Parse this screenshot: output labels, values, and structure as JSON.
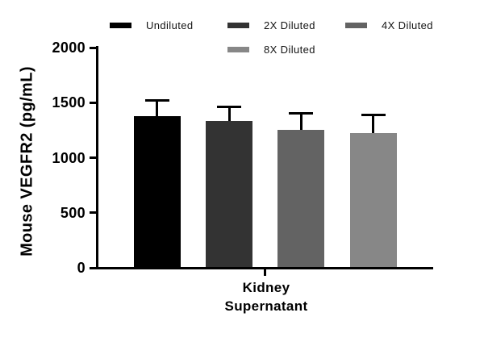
{
  "background": "#ffffff",
  "chart_data": {
    "type": "bar",
    "title": "",
    "ylabel": "Mouse VEGFR2 (pg/mL)",
    "xlabel": "Kidney Supernatant",
    "xlabel_line1": "Kidney",
    "xlabel_line2": "Supernatant",
    "categories": [
      "Kidney Supernatant"
    ],
    "series": [
      {
        "name": "Undiluted",
        "value": 1380,
        "error": 140,
        "color": "#000000"
      },
      {
        "name": "2X Diluted",
        "value": 1330,
        "error": 135,
        "color": "#333333"
      },
      {
        "name": "4X Diluted",
        "value": 1250,
        "error": 155,
        "color": "#636363"
      },
      {
        "name": "8X Diluted",
        "value": 1220,
        "error": 170,
        "color": "#878787"
      }
    ],
    "ylim": [
      0,
      2000
    ],
    "yticks": [
      0,
      500,
      1000,
      1500,
      2000
    ],
    "grid": false,
    "legend_position": "top",
    "error_bar_style": "cap-up",
    "error_color": "#000000",
    "axis_color": "#000000"
  }
}
